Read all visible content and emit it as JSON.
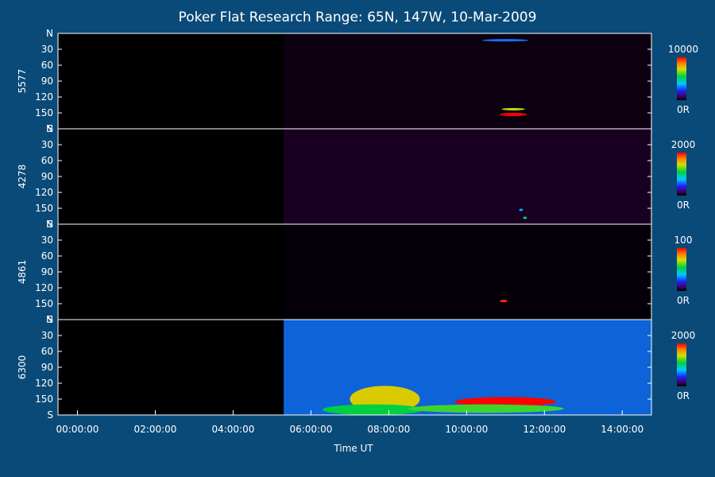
{
  "chart_data": {
    "type": "heatmap",
    "title": "Poker Flat Research Range: 65N, 147W, 10-Mar-2009",
    "xlabel": "Time UT",
    "x_ticks": [
      "00:00:00",
      "02:00:00",
      "04:00:00",
      "06:00:00",
      "08:00:00",
      "10:00:00",
      "12:00:00",
      "14:00:00"
    ],
    "x_range_hours": [
      -0.5,
      14.75
    ],
    "y_ticks": [
      "N",
      "30",
      "60",
      "90",
      "120",
      "150",
      "S"
    ],
    "y_range": [
      0,
      180
    ],
    "data_start_hour": 5.3,
    "panels": [
      {
        "ylabel": "5577",
        "colorbar": {
          "max_label": "10000",
          "min_label": "0R"
        },
        "background_level": 0.02,
        "features": [
          {
            "t": 11.2,
            "angle": 153,
            "dt": 0.35,
            "dangle": 3,
            "level": 1.0
          },
          {
            "t": 11.2,
            "angle": 143,
            "dt": 0.3,
            "dangle": 2,
            "level": 0.7
          },
          {
            "t": 11.0,
            "angle": 13,
            "dt": 0.6,
            "dangle": 1,
            "level": 0.3
          }
        ]
      },
      {
        "ylabel": "4278",
        "colorbar": {
          "max_label": "2000",
          "min_label": "0R"
        },
        "background_level": 0.04,
        "features": [
          {
            "t": 11.5,
            "angle": 168,
            "dt": 0.05,
            "dangle": 1,
            "level": 0.5
          },
          {
            "t": 11.4,
            "angle": 153,
            "dt": 0.05,
            "dangle": 1,
            "level": 0.35
          }
        ]
      },
      {
        "ylabel": "4861",
        "colorbar": {
          "max_label": "100",
          "min_label": "0R"
        },
        "background_level": 0.0,
        "features": [
          {
            "t": 10.95,
            "angle": 145,
            "dt": 0.1,
            "dangle": 1,
            "level": 0.95
          }
        ]
      },
      {
        "ylabel": "6300",
        "colorbar": {
          "max_label": "2000",
          "min_label": "0R"
        },
        "background_level": 0.3,
        "features": [
          {
            "t": 11.0,
            "angle": 155,
            "dt": 1.3,
            "dangle": 9,
            "level": 1.0
          },
          {
            "t": 7.9,
            "angle": 150,
            "dt": 0.9,
            "dangle": 25,
            "level": 0.75
          },
          {
            "t": 7.6,
            "angle": 170,
            "dt": 1.3,
            "dangle": 10,
            "level": 0.55
          },
          {
            "t": 10.5,
            "angle": 168,
            "dt": 2.0,
            "dangle": 8,
            "level": 0.6
          }
        ]
      }
    ]
  }
}
